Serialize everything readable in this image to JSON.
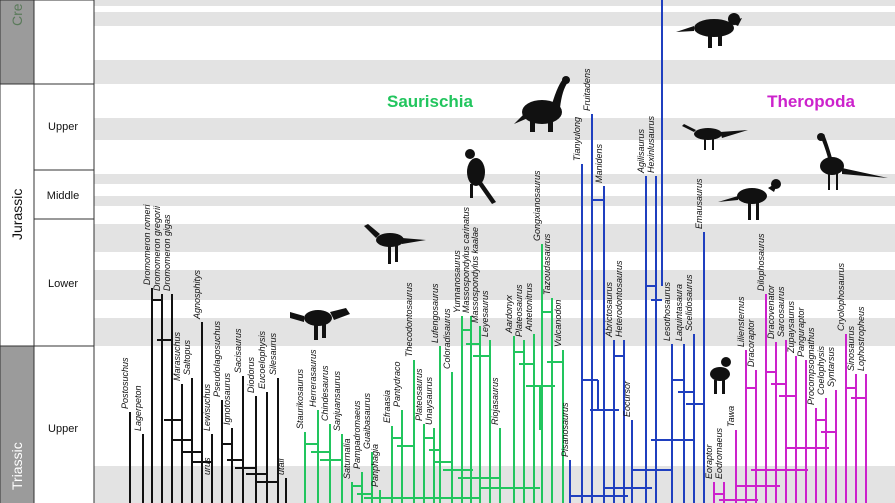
{
  "timescale": {
    "periods": [
      {
        "label": "Cre",
        "fill": "#9b9b9b",
        "text_color": "#5a7a5a"
      },
      {
        "label": "Jurassic",
        "fill": "#ffffff",
        "text_color": "#111111"
      },
      {
        "label": "Triassic",
        "fill": "#9b9b9b",
        "text_color": "#ffffff"
      }
    ],
    "epochs": [
      "Upper",
      "Middle",
      "Lower",
      "Upper"
    ]
  },
  "clades": [
    {
      "label": "Saurischia",
      "color": "#22c55e"
    },
    {
      "label": "Theropoda",
      "color": "#cc22cc"
    }
  ],
  "colors": {
    "basal": "#111111",
    "saurischia": "#22c55e",
    "sauropodomorph_blue": "#1f3fbf",
    "theropoda": "#cc22cc",
    "band_gray": "#e3e3e3",
    "silhouette": "#111111"
  },
  "taxa": {
    "basal": [
      "Postosuchus",
      "Lagerpeton",
      "Dromomeron romeri",
      "Dromomeron gregorii",
      "Dromomeron gigas",
      "Marasuchus",
      "Saltopus",
      "Agnosphitys",
      "Lewisuchus",
      "Pseudolagosuchus",
      "Ignotosaurus",
      "Sacisaurus",
      "Diodorus",
      "Eucoelophysis",
      "Silesaurus",
      "urus",
      "utali"
    ],
    "saurischia": [
      "Staurikosaurus",
      "Herrerasaurus",
      "Chindesaurus",
      "Sanjuansaurus",
      "Saturnalia",
      "Pampadromaeus",
      "Guaibasaurus",
      "Panphagia",
      "Efraasia",
      "Pantydraco",
      "Thecodontosaurus",
      "Plateosaurus",
      "Unaysaurus",
      "Lufengosaurus",
      "Coloradisaurus",
      "Yunnanosaurus",
      "Massospondylus carinatus",
      "Massospondylus kaalae",
      "Leyesaurus",
      "Riojasaurus",
      "Aardonyx",
      "Plateosaurus",
      "Antetonitrus",
      "Gongxianosaurus",
      "Tazoudasaurus",
      "Vulcanodon"
    ],
    "blue": [
      "Pisanosaurus",
      "Tianyulong",
      "Fruitadens",
      "Manidens",
      "Abrictosaurus",
      "Heterodontosaurus",
      "Eocursor",
      "Agilisaurus",
      "Hexinlusaurus",
      "Lesothosaurus",
      "Laquintasaura",
      "Scelidosaurus",
      "Emausaurus"
    ],
    "theropoda": [
      "Eoraptor",
      "Eodromaeus",
      "Tawa",
      "Liliensternus",
      "Dracoraptor",
      "Dilophosaurus",
      "Dracovenator",
      "Sarcosaurus",
      "Zupaysaurus",
      "Panguraptor",
      "Procompsognathus",
      "Coelophysis",
      "Syntarsus",
      "Cryolophosaurus",
      "Sinosaurus",
      "Lophostropheus"
    ]
  }
}
